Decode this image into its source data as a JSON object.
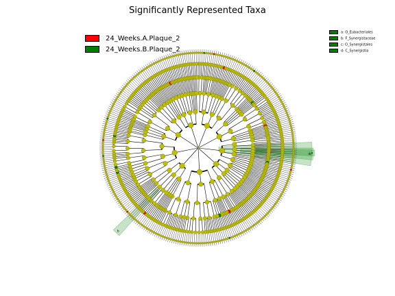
{
  "chart_data": {
    "type": "cladogram",
    "title": "Significantly Represented Taxa",
    "classes": [
      {
        "name": "24_Weeks.A.Plaque_2",
        "color": "#ff0000"
      },
      {
        "name": "24_Weeks.B.Plaque_2",
        "color": "#008000"
      }
    ],
    "clade_legend": [
      {
        "label": "a: O_Eubacteriales",
        "color": "#008000"
      },
      {
        "label": "b: F_Synergistaceae",
        "color": "#008000"
      },
      {
        "label": "c: O_Synergistales",
        "color": "#008000"
      },
      {
        "label": "d: C_Synergistia",
        "color": "#008000"
      }
    ],
    "highlight_labels": [
      "a",
      "b",
      "c",
      "d"
    ],
    "node_color": "#bfbf00",
    "leaf_count": 300,
    "inner_levels": 5
  }
}
